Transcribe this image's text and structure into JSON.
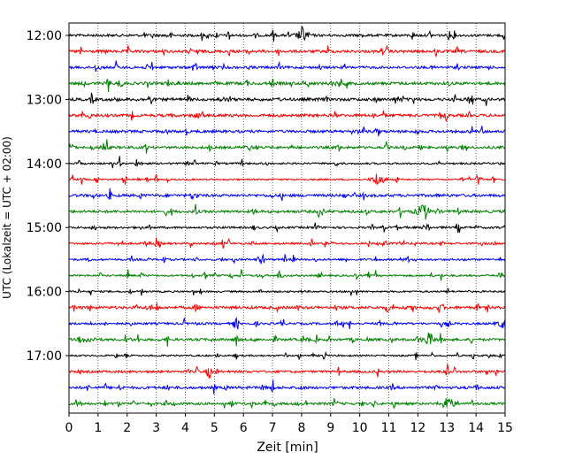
{
  "chart_data": {
    "type": "line",
    "title": "",
    "xlabel": "Zeit  [min]",
    "ylabel": "UTC (Lokalzeit = UTC + 02:00)",
    "xlim": [
      0,
      15
    ],
    "x_ticks": [
      "0",
      "1",
      "2",
      "3",
      "4",
      "5",
      "6",
      "7",
      "8",
      "9",
      "10",
      "11",
      "12",
      "13",
      "14",
      "15"
    ],
    "y_ticks": [
      "12:00",
      "13:00",
      "14:00",
      "15:00",
      "16:00",
      "17:00"
    ],
    "grid": "vertical dotted",
    "legend": "none",
    "colors": [
      "#000000",
      "#ff0000",
      "#0000ff",
      "#008000"
    ],
    "rows": [
      {
        "start": "12:00",
        "color": "#000000"
      },
      {
        "start": "12:15",
        "color": "#ff0000"
      },
      {
        "start": "12:30",
        "color": "#0000ff"
      },
      {
        "start": "12:45",
        "color": "#008000"
      },
      {
        "start": "13:00",
        "color": "#000000"
      },
      {
        "start": "13:15",
        "color": "#ff0000"
      },
      {
        "start": "13:30",
        "color": "#0000ff"
      },
      {
        "start": "13:45",
        "color": "#008000"
      },
      {
        "start": "14:00",
        "color": "#000000"
      },
      {
        "start": "14:15",
        "color": "#ff0000"
      },
      {
        "start": "14:30",
        "color": "#0000ff"
      },
      {
        "start": "14:45",
        "color": "#008000"
      },
      {
        "start": "15:00",
        "color": "#000000"
      },
      {
        "start": "15:15",
        "color": "#ff0000"
      },
      {
        "start": "15:30",
        "color": "#0000ff"
      },
      {
        "start": "15:45",
        "color": "#008000"
      },
      {
        "start": "16:00",
        "color": "#000000"
      },
      {
        "start": "16:15",
        "color": "#ff0000"
      },
      {
        "start": "16:30",
        "color": "#0000ff"
      },
      {
        "start": "16:45",
        "color": "#008000"
      },
      {
        "start": "17:00",
        "color": "#000000"
      },
      {
        "start": "17:15",
        "color": "#ff0000"
      },
      {
        "start": "17:30",
        "color": "#0000ff"
      },
      {
        "start": "17:45",
        "color": "#008000"
      }
    ]
  }
}
